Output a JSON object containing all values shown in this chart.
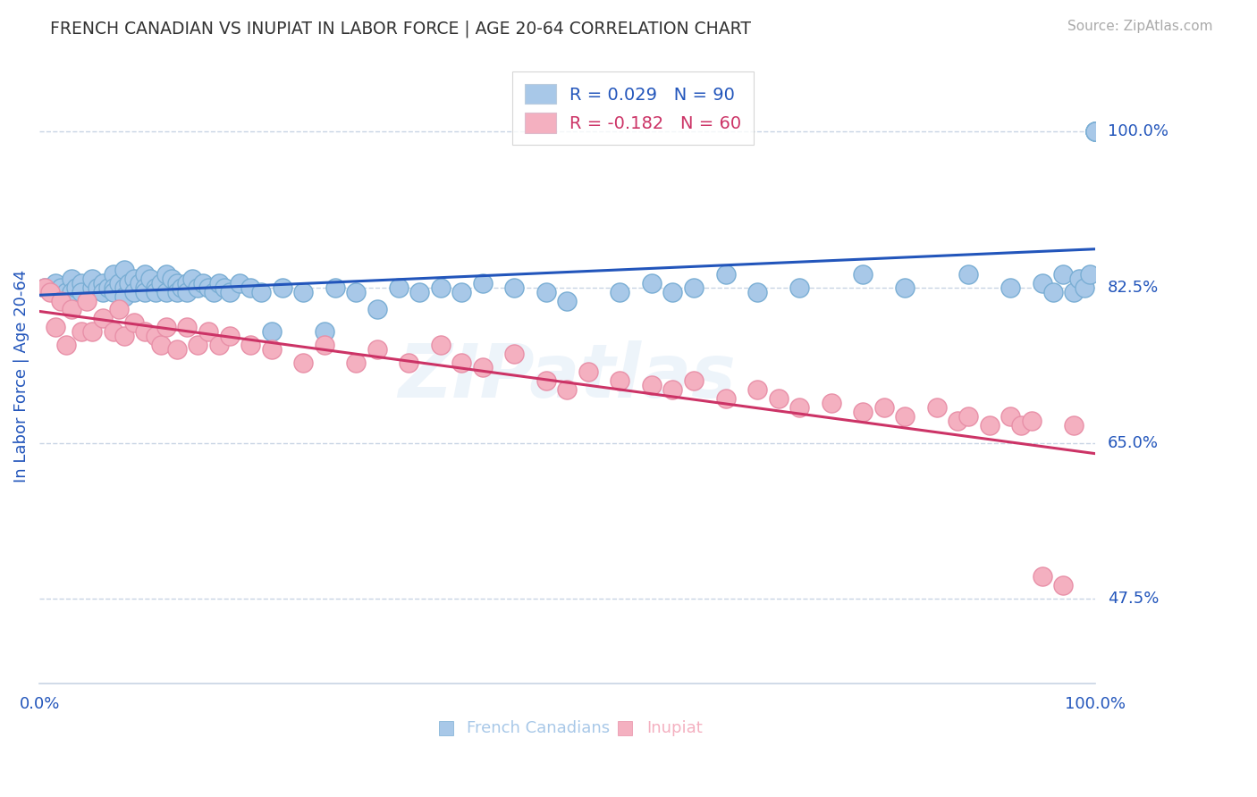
{
  "title": "FRENCH CANADIAN VS INUPIAT IN LABOR FORCE | AGE 20-64 CORRELATION CHART",
  "source_text": "Source: ZipAtlas.com",
  "ylabel": "In Labor Force | Age 20-64",
  "xlim": [
    0.0,
    1.0
  ],
  "ylim": [
    0.38,
    1.07
  ],
  "yticks": [
    0.475,
    0.65,
    0.825,
    1.0
  ],
  "ytick_labels": [
    "47.5%",
    "65.0%",
    "82.5%",
    "100.0%"
  ],
  "blue_color": "#a8c8e8",
  "blue_edge_color": "#7aaed4",
  "pink_color": "#f4b0c0",
  "pink_edge_color": "#e890a8",
  "blue_line_color": "#2255bb",
  "pink_line_color": "#cc3366",
  "grid_color": "#c8d4e4",
  "background_color": "#ffffff",
  "title_color": "#333333",
  "axis_label_color": "#2255bb",
  "tick_color": "#2255bb",
  "source_color": "#aaaaaa",
  "blue_label_R": "R = 0.029",
  "blue_label_N": "N = 90",
  "pink_label_R": "R = -0.182",
  "pink_label_N": "N = 60",
  "bottom_blue_label": "French Canadians",
  "bottom_pink_label": "Inupiat",
  "watermark": "ZIPatlas",
  "blue_x": [
    0.005,
    0.01,
    0.015,
    0.02,
    0.025,
    0.03,
    0.03,
    0.035,
    0.04,
    0.04,
    0.05,
    0.05,
    0.055,
    0.06,
    0.06,
    0.065,
    0.07,
    0.07,
    0.07,
    0.075,
    0.08,
    0.08,
    0.08,
    0.085,
    0.09,
    0.09,
    0.095,
    0.1,
    0.1,
    0.1,
    0.105,
    0.11,
    0.11,
    0.115,
    0.12,
    0.12,
    0.125,
    0.13,
    0.13,
    0.135,
    0.14,
    0.14,
    0.145,
    0.15,
    0.155,
    0.16,
    0.165,
    0.17,
    0.175,
    0.18,
    0.19,
    0.2,
    0.21,
    0.22,
    0.23,
    0.25,
    0.27,
    0.28,
    0.3,
    0.32,
    0.34,
    0.36,
    0.38,
    0.4,
    0.42,
    0.45,
    0.48,
    0.5,
    0.55,
    0.58,
    0.6,
    0.62,
    0.65,
    0.68,
    0.72,
    0.78,
    0.82,
    0.88,
    0.92,
    0.95,
    0.96,
    0.97,
    0.98,
    0.985,
    0.99,
    0.995,
    1.0,
    1.0,
    1.0,
    1.0
  ],
  "blue_y": [
    0.825,
    0.825,
    0.83,
    0.825,
    0.82,
    0.835,
    0.82,
    0.825,
    0.83,
    0.82,
    0.825,
    0.835,
    0.825,
    0.83,
    0.82,
    0.825,
    0.84,
    0.825,
    0.82,
    0.83,
    0.845,
    0.825,
    0.815,
    0.83,
    0.835,
    0.82,
    0.83,
    0.84,
    0.825,
    0.82,
    0.835,
    0.825,
    0.82,
    0.83,
    0.84,
    0.82,
    0.835,
    0.83,
    0.82,
    0.825,
    0.83,
    0.82,
    0.835,
    0.825,
    0.83,
    0.825,
    0.82,
    0.83,
    0.825,
    0.82,
    0.83,
    0.825,
    0.82,
    0.775,
    0.825,
    0.82,
    0.775,
    0.825,
    0.82,
    0.8,
    0.825,
    0.82,
    0.825,
    0.82,
    0.83,
    0.825,
    0.82,
    0.81,
    0.82,
    0.83,
    0.82,
    0.825,
    0.84,
    0.82,
    0.825,
    0.84,
    0.825,
    0.84,
    0.825,
    0.83,
    0.82,
    0.84,
    0.82,
    0.835,
    0.825,
    0.84,
    1.0,
    1.0,
    1.0,
    1.0
  ],
  "pink_x": [
    0.005,
    0.01,
    0.015,
    0.02,
    0.025,
    0.03,
    0.04,
    0.045,
    0.05,
    0.06,
    0.07,
    0.075,
    0.08,
    0.09,
    0.1,
    0.11,
    0.115,
    0.12,
    0.13,
    0.14,
    0.15,
    0.16,
    0.17,
    0.18,
    0.2,
    0.22,
    0.25,
    0.27,
    0.3,
    0.32,
    0.35,
    0.38,
    0.4,
    0.42,
    0.45,
    0.48,
    0.5,
    0.52,
    0.55,
    0.58,
    0.6,
    0.62,
    0.65,
    0.68,
    0.7,
    0.72,
    0.75,
    0.78,
    0.8,
    0.82,
    0.85,
    0.87,
    0.88,
    0.9,
    0.92,
    0.93,
    0.94,
    0.95,
    0.97,
    0.98
  ],
  "pink_y": [
    0.825,
    0.82,
    0.78,
    0.81,
    0.76,
    0.8,
    0.775,
    0.81,
    0.775,
    0.79,
    0.775,
    0.8,
    0.77,
    0.785,
    0.775,
    0.77,
    0.76,
    0.78,
    0.755,
    0.78,
    0.76,
    0.775,
    0.76,
    0.77,
    0.76,
    0.755,
    0.74,
    0.76,
    0.74,
    0.755,
    0.74,
    0.76,
    0.74,
    0.735,
    0.75,
    0.72,
    0.71,
    0.73,
    0.72,
    0.715,
    0.71,
    0.72,
    0.7,
    0.71,
    0.7,
    0.69,
    0.695,
    0.685,
    0.69,
    0.68,
    0.69,
    0.675,
    0.68,
    0.67,
    0.68,
    0.67,
    0.675,
    0.5,
    0.49,
    0.67
  ]
}
